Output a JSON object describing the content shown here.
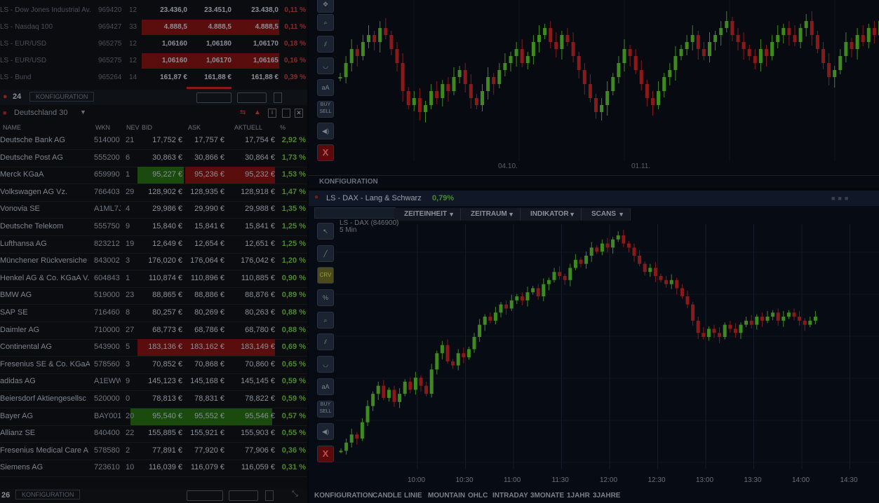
{
  "ticker_top": [
    {
      "name": "LS - Dow Jones Industrial Av.",
      "wkn": "969420",
      "nev": "12",
      "bid": "23.436,0",
      "ask": "23.451,0",
      "akt": "23.438,0",
      "pct": "0,11 %",
      "hl": "none"
    },
    {
      "name": "LS - Nasdaq 100",
      "wkn": "969427",
      "nev": "33",
      "bid": "4.888,5",
      "ask": "4.888,5",
      "akt": "4.888,5",
      "pct": "0,11 %",
      "hl": "red"
    },
    {
      "name": "LS - EUR/USD",
      "wkn": "965275",
      "nev": "12",
      "bid": "1,06160",
      "ask": "1,06180",
      "akt": "1,06170",
      "pct": "0,18 %",
      "hl": "none"
    },
    {
      "name": "LS - EUR/USD",
      "wkn": "965275",
      "nev": "12",
      "bid": "1,06160",
      "ask": "1,06170",
      "akt": "1,06165",
      "pct": "0,16 %",
      "hl": "red"
    },
    {
      "name": "LS - Bund",
      "wkn": "965264",
      "nev": "14",
      "bid": "161,87 €",
      "ask": "161,88 €",
      "akt": "161,88 €",
      "pct": "0,39 %",
      "hl": "none"
    }
  ],
  "watchlist": {
    "count": "24",
    "section_btn": "KONFIGURATION",
    "selector": "Deutschland 30",
    "headers": {
      "name": "NAME",
      "wkn": "WKN",
      "nev": "NEV",
      "bid": "BID",
      "ask": "ASK",
      "akt": "AKTUELL",
      "pct": "%"
    },
    "rows": [
      {
        "name": "Deutsche Bank AG",
        "wkn": "514000",
        "nev": "21",
        "bid": "17,752 €",
        "ask": "17,757 €",
        "akt": "17,754 €",
        "pct": "2,92 %",
        "hl": "none"
      },
      {
        "name": "Deutsche Post AG",
        "wkn": "555200",
        "nev": "6",
        "bid": "30,863 €",
        "ask": "30,866 €",
        "akt": "30,864 €",
        "pct": "1,73 %",
        "hl": "none"
      },
      {
        "name": "Merck KGaA",
        "wkn": "659990",
        "nev": "1",
        "bid": "95,227 €",
        "ask": "95,236 €",
        "akt": "95,232 €",
        "pct": "1,53 %",
        "hl": "mixed"
      },
      {
        "name": "Volkswagen AG Vz.",
        "wkn": "766403",
        "nev": "29",
        "bid": "128,902 €",
        "ask": "128,935 €",
        "akt": "128,918 €",
        "pct": "1,47 %",
        "hl": "none"
      },
      {
        "name": "Vonovia SE",
        "wkn": "A1ML7J",
        "nev": "4",
        "bid": "29,986 €",
        "ask": "29,990 €",
        "akt": "29,988 €",
        "pct": "1,35 %",
        "hl": "none"
      },
      {
        "name": "Deutsche Telekom",
        "wkn": "555750",
        "nev": "9",
        "bid": "15,840 €",
        "ask": "15,841 €",
        "akt": "15,841 €",
        "pct": "1,25 %",
        "hl": "none"
      },
      {
        "name": "Lufthansa AG",
        "wkn": "823212",
        "nev": "19",
        "bid": "12,649 €",
        "ask": "12,654 €",
        "akt": "12,651 €",
        "pct": "1,25 %",
        "hl": "none"
      },
      {
        "name": "Münchener Rückversiche",
        "wkn": "843002",
        "nev": "3",
        "bid": "176,020 €",
        "ask": "176,064 €",
        "akt": "176,042 €",
        "pct": "1,20 %",
        "hl": "none"
      },
      {
        "name": "Henkel AG & Co. KGaA V.",
        "wkn": "604843",
        "nev": "1",
        "bid": "110,874 €",
        "ask": "110,896 €",
        "akt": "110,885 €",
        "pct": "0,90 %",
        "hl": "none"
      },
      {
        "name": "BMW AG",
        "wkn": "519000",
        "nev": "23",
        "bid": "88,865 €",
        "ask": "88,886 €",
        "akt": "88,876 €",
        "pct": "0,89 %",
        "hl": "none"
      },
      {
        "name": "SAP SE",
        "wkn": "716460",
        "nev": "8",
        "bid": "80,257 €",
        "ask": "80,269 €",
        "akt": "80,263 €",
        "pct": "0,88 %",
        "hl": "none"
      },
      {
        "name": "Daimler AG",
        "wkn": "710000",
        "nev": "27",
        "bid": "68,773 €",
        "ask": "68,786 €",
        "akt": "68,780 €",
        "pct": "0,88 %",
        "hl": "none"
      },
      {
        "name": "Continental AG",
        "wkn": "543900",
        "nev": "5",
        "bid": "183,136 €",
        "ask": "183,162 €",
        "akt": "183,149 €",
        "pct": "0,69 %",
        "hl": "red"
      },
      {
        "name": "Fresenius SE & Co. KGaA",
        "wkn": "578560",
        "nev": "3",
        "bid": "70,852 €",
        "ask": "70,868 €",
        "akt": "70,860 €",
        "pct": "0,65 %",
        "hl": "none"
      },
      {
        "name": "adidas AG",
        "wkn": "A1EWW",
        "nev": "9",
        "bid": "145,123 €",
        "ask": "145,168 €",
        "akt": "145,145 €",
        "pct": "0,59 %",
        "hl": "none"
      },
      {
        "name": "Beiersdorf Aktiengesellsc",
        "wkn": "520000",
        "nev": "0",
        "bid": "78,813 €",
        "ask": "78,831 €",
        "akt": "78,822 €",
        "pct": "0,59 %",
        "hl": "none"
      },
      {
        "name": "Bayer AG",
        "wkn": "BAY001",
        "nev": "20",
        "bid": "95,540 €",
        "ask": "95,552 €",
        "akt": "95,546 €",
        "pct": "0,57 %",
        "hl": "green"
      },
      {
        "name": "Allianz SE",
        "wkn": "840400",
        "nev": "22",
        "bid": "155,885 €",
        "ask": "155,921 €",
        "akt": "155,903 €",
        "pct": "0,55 %",
        "hl": "none"
      },
      {
        "name": "Fresenius Medical Care A",
        "wkn": "578580",
        "nev": "2",
        "bid": "77,891 €",
        "ask": "77,920 €",
        "akt": "77,906 €",
        "pct": "0,36 %",
        "hl": "none"
      },
      {
        "name": "Siemens AG",
        "wkn": "723610",
        "nev": "10",
        "bid": "116,039 €",
        "ask": "116,079 €",
        "akt": "116,059 €",
        "pct": "0,31 %",
        "hl": "none"
      }
    ],
    "footer_count": "26",
    "footer_btn": "KONFIGURATION"
  },
  "top_chart": {
    "x_labels": [
      "04.10.",
      "01.11."
    ],
    "config_label": "KONFIGURATION"
  },
  "main_chart": {
    "title": "LS - DAX - Lang & Schwarz",
    "change": "0,79%",
    "subtitle_name": "LS - DAX (846900)",
    "subtitle_interval": "5 Min",
    "toolbar": [
      "ZEITEINHEIT",
      "ZEITRAUM",
      "INDIKATOR",
      "SCANS"
    ],
    "x_labels": [
      "10:00",
      "10:30",
      "11:00",
      "11:30",
      "12:00",
      "12:30",
      "13:00",
      "13:30",
      "14:00",
      "14:30"
    ],
    "bottom_tabs": [
      "KONFIGURATION",
      "CANDLE",
      "LINIE",
      "MOUNTAIN",
      "OHLC",
      "INTRADAY",
      "3MONATE",
      "1JAHR",
      "3JAHRE"
    ]
  },
  "colors": {
    "up": "#3f8a1f",
    "down": "#8a1a1a",
    "bid_red": "#5a0d0d",
    "bid_green": "#1a4a0e"
  }
}
